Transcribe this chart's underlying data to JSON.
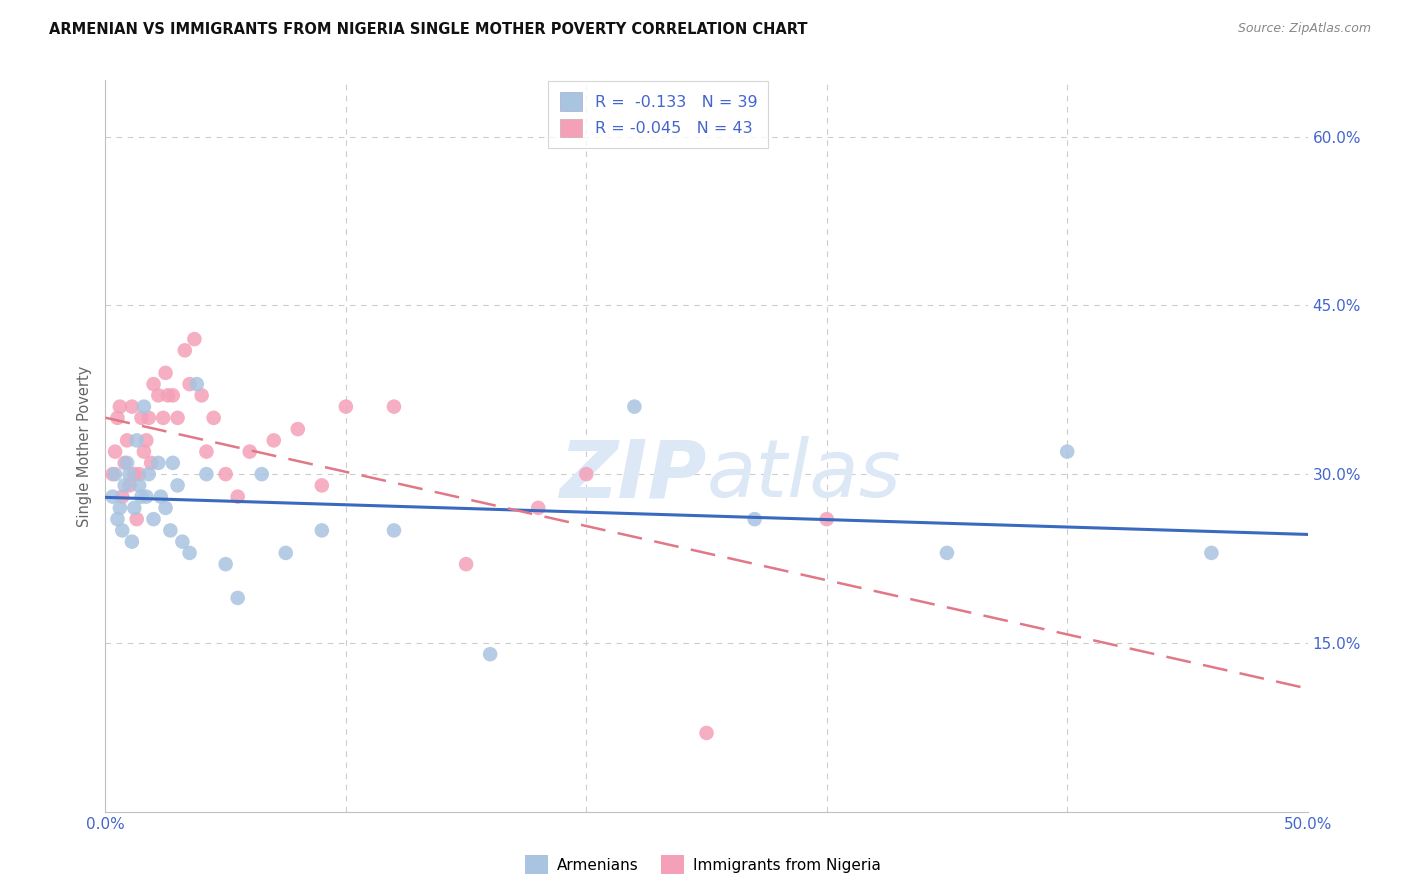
{
  "title": "ARMENIAN VS IMMIGRANTS FROM NIGERIA SINGLE MOTHER POVERTY CORRELATION CHART",
  "source": "Source: ZipAtlas.com",
  "ylabel": "Single Mother Poverty",
  "xlim": [
    0.0,
    0.5
  ],
  "ylim": [
    0.0,
    0.65
  ],
  "armenians_R": -0.133,
  "armenians_N": 39,
  "nigeria_R": -0.045,
  "nigeria_N": 43,
  "armenians_color": "#a8c4e0",
  "nigeria_color": "#f4a0b8",
  "armenians_line_color": "#3a6abf",
  "nigeria_line_color": "#e07888",
  "background_color": "#ffffff",
  "grid_color": "#cccccc",
  "axis_color": "#c0c0c0",
  "tick_color": "#4466cc",
  "watermark_color": "#dce8f5",
  "legend_label_armenians": "Armenians",
  "legend_label_nigeria": "Immigrants from Nigeria",
  "armenians_x": [
    0.003,
    0.004,
    0.005,
    0.006,
    0.007,
    0.008,
    0.009,
    0.01,
    0.011,
    0.012,
    0.013,
    0.014,
    0.015,
    0.016,
    0.017,
    0.018,
    0.02,
    0.022,
    0.023,
    0.025,
    0.027,
    0.028,
    0.03,
    0.032,
    0.035,
    0.038,
    0.042,
    0.05,
    0.055,
    0.065,
    0.075,
    0.09,
    0.12,
    0.16,
    0.22,
    0.27,
    0.35,
    0.4,
    0.46
  ],
  "armenians_y": [
    0.28,
    0.3,
    0.26,
    0.27,
    0.25,
    0.29,
    0.31,
    0.3,
    0.24,
    0.27,
    0.33,
    0.29,
    0.28,
    0.36,
    0.28,
    0.3,
    0.26,
    0.31,
    0.28,
    0.27,
    0.25,
    0.31,
    0.29,
    0.24,
    0.23,
    0.38,
    0.3,
    0.22,
    0.19,
    0.3,
    0.23,
    0.25,
    0.25,
    0.14,
    0.36,
    0.26,
    0.23,
    0.32,
    0.23
  ],
  "nigeria_x": [
    0.003,
    0.004,
    0.005,
    0.006,
    0.007,
    0.008,
    0.009,
    0.01,
    0.011,
    0.012,
    0.013,
    0.014,
    0.015,
    0.016,
    0.017,
    0.018,
    0.019,
    0.02,
    0.022,
    0.024,
    0.025,
    0.026,
    0.028,
    0.03,
    0.033,
    0.035,
    0.037,
    0.04,
    0.042,
    0.045,
    0.05,
    0.055,
    0.06,
    0.07,
    0.08,
    0.09,
    0.1,
    0.12,
    0.15,
    0.18,
    0.2,
    0.25,
    0.3
  ],
  "nigeria_y": [
    0.3,
    0.32,
    0.35,
    0.36,
    0.28,
    0.31,
    0.33,
    0.29,
    0.36,
    0.3,
    0.26,
    0.3,
    0.35,
    0.32,
    0.33,
    0.35,
    0.31,
    0.38,
    0.37,
    0.35,
    0.39,
    0.37,
    0.37,
    0.35,
    0.41,
    0.38,
    0.42,
    0.37,
    0.32,
    0.35,
    0.3,
    0.28,
    0.32,
    0.33,
    0.34,
    0.29,
    0.36,
    0.36,
    0.22,
    0.27,
    0.3,
    0.07,
    0.26
  ]
}
